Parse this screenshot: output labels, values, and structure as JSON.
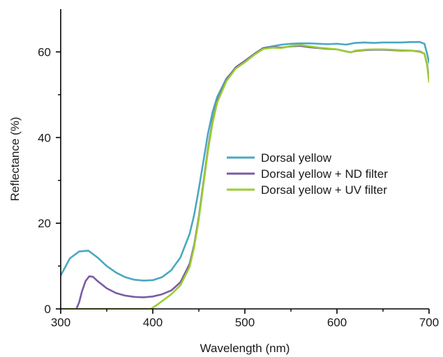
{
  "chart_data": {
    "type": "line",
    "title": "",
    "xlabel": "Wavelength (nm)",
    "ylabel": "Reflectance (%)",
    "xlim": [
      300,
      700
    ],
    "ylim": [
      0,
      70
    ],
    "xticks": [
      300,
      400,
      500,
      600,
      700
    ],
    "yticks": [
      0,
      20,
      40,
      60
    ],
    "grid": false,
    "legend_position": "center-right",
    "series": [
      {
        "name": "Dorsal yellow",
        "color": "#4aa8c0",
        "x": [
          300,
          310,
          320,
          330,
          340,
          350,
          360,
          370,
          380,
          390,
          400,
          410,
          420,
          430,
          440,
          445,
          450,
          455,
          460,
          465,
          470,
          480,
          490,
          500,
          510,
          520,
          530,
          540,
          550,
          560,
          570,
          580,
          590,
          600,
          610,
          620,
          630,
          640,
          650,
          660,
          670,
          680,
          690,
          695,
          698,
          700
        ],
        "y": [
          7.8,
          11.8,
          13.4,
          13.6,
          12.0,
          10.0,
          8.5,
          7.4,
          6.8,
          6.6,
          6.7,
          7.4,
          9.0,
          12.0,
          17.5,
          22.0,
          28.0,
          34.5,
          41.0,
          46.0,
          49.5,
          53.8,
          56.2,
          57.6,
          59.3,
          60.9,
          61.3,
          61.7,
          61.9,
          62.0,
          62.0,
          61.9,
          61.8,
          61.9,
          61.7,
          62.1,
          62.2,
          62.1,
          62.2,
          62.2,
          62.2,
          62.3,
          62.3,
          61.9,
          59.5,
          57.5
        ]
      },
      {
        "name": "Dorsal yellow + ND filter",
        "color": "#7b5ba4",
        "x": [
          317,
          320,
          323,
          327,
          331,
          335,
          340,
          350,
          360,
          370,
          380,
          390,
          400,
          410,
          420,
          430,
          440,
          445,
          450,
          455,
          460,
          465,
          470,
          480,
          490,
          500,
          510,
          520,
          530,
          540,
          550,
          560,
          570,
          580,
          590,
          600,
          610,
          615,
          620,
          630,
          640,
          650,
          660,
          670,
          680,
          690,
          695,
          698,
          700
        ],
        "y": [
          0,
          1.5,
          4.0,
          6.5,
          7.6,
          7.5,
          6.5,
          4.8,
          3.7,
          3.1,
          2.8,
          2.7,
          2.9,
          3.4,
          4.3,
          6.2,
          10.5,
          15.0,
          21.5,
          29.5,
          37.5,
          44.0,
          48.5,
          53.5,
          56.4,
          57.9,
          59.5,
          60.9,
          61.1,
          61.0,
          61.3,
          61.4,
          61.1,
          60.9,
          60.7,
          60.6,
          60.1,
          59.9,
          60.2,
          60.4,
          60.5,
          60.5,
          60.4,
          60.3,
          60.3,
          60.1,
          59.6,
          57.0,
          53.5
        ]
      },
      {
        "name": "Dorsal yellow + UV filter",
        "color": "#9acd32",
        "x": [
          300,
          320,
          340,
          360,
          380,
          398,
          405,
          410,
          420,
          430,
          440,
          445,
          450,
          455,
          460,
          465,
          470,
          480,
          490,
          500,
          510,
          520,
          530,
          540,
          550,
          560,
          570,
          580,
          590,
          600,
          610,
          615,
          620,
          630,
          640,
          650,
          660,
          670,
          680,
          690,
          695,
          698,
          700
        ],
        "y": [
          0,
          0,
          0,
          0,
          0,
          0,
          1.0,
          1.8,
          3.4,
          5.5,
          9.8,
          14.5,
          21.0,
          29.0,
          37.0,
          43.5,
          48.2,
          53.2,
          56.1,
          57.6,
          59.3,
          60.7,
          61.0,
          60.9,
          61.4,
          61.6,
          61.3,
          61.0,
          60.8,
          60.6,
          60.1,
          59.9,
          60.3,
          60.5,
          60.6,
          60.6,
          60.5,
          60.4,
          60.3,
          60.0,
          59.6,
          56.8,
          53.0
        ]
      }
    ]
  }
}
